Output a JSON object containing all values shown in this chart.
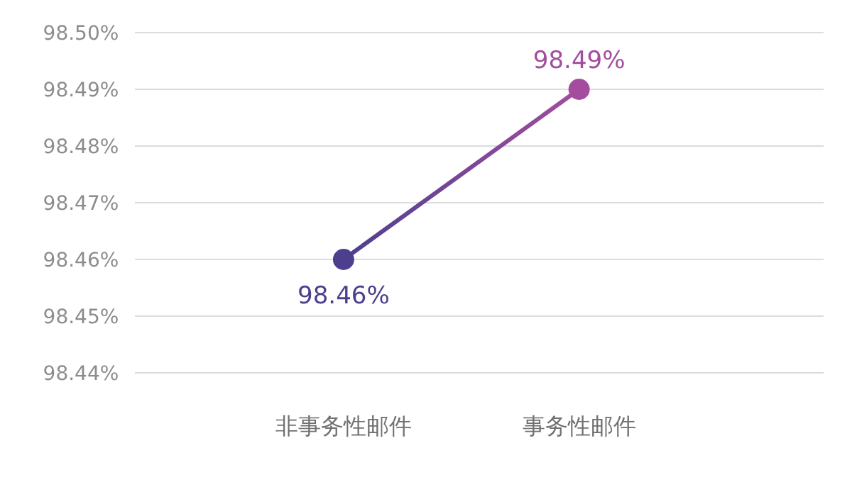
{
  "chart_data": {
    "type": "line",
    "categories": [
      "非事务性邮件",
      "事务性邮件"
    ],
    "values": [
      98.46,
      98.49
    ],
    "colors": [
      "#4e3f8e",
      "#a44d9f"
    ],
    "ylim": [
      98.44,
      98.5
    ],
    "yticks": [
      {
        "value": 98.44,
        "label": "98.44%"
      },
      {
        "value": 98.45,
        "label": "98.45%"
      },
      {
        "value": 98.46,
        "label": "98.46%"
      },
      {
        "value": 98.47,
        "label": "98.47%"
      },
      {
        "value": 98.48,
        "label": "98.48%"
      },
      {
        "value": 98.49,
        "label": "98.49%"
      },
      {
        "value": 98.5,
        "label": "98.50%"
      }
    ],
    "value_labels": [
      "98.46%",
      "98.49%"
    ],
    "grid": "y",
    "marker": "circle",
    "line_style": "solid"
  }
}
